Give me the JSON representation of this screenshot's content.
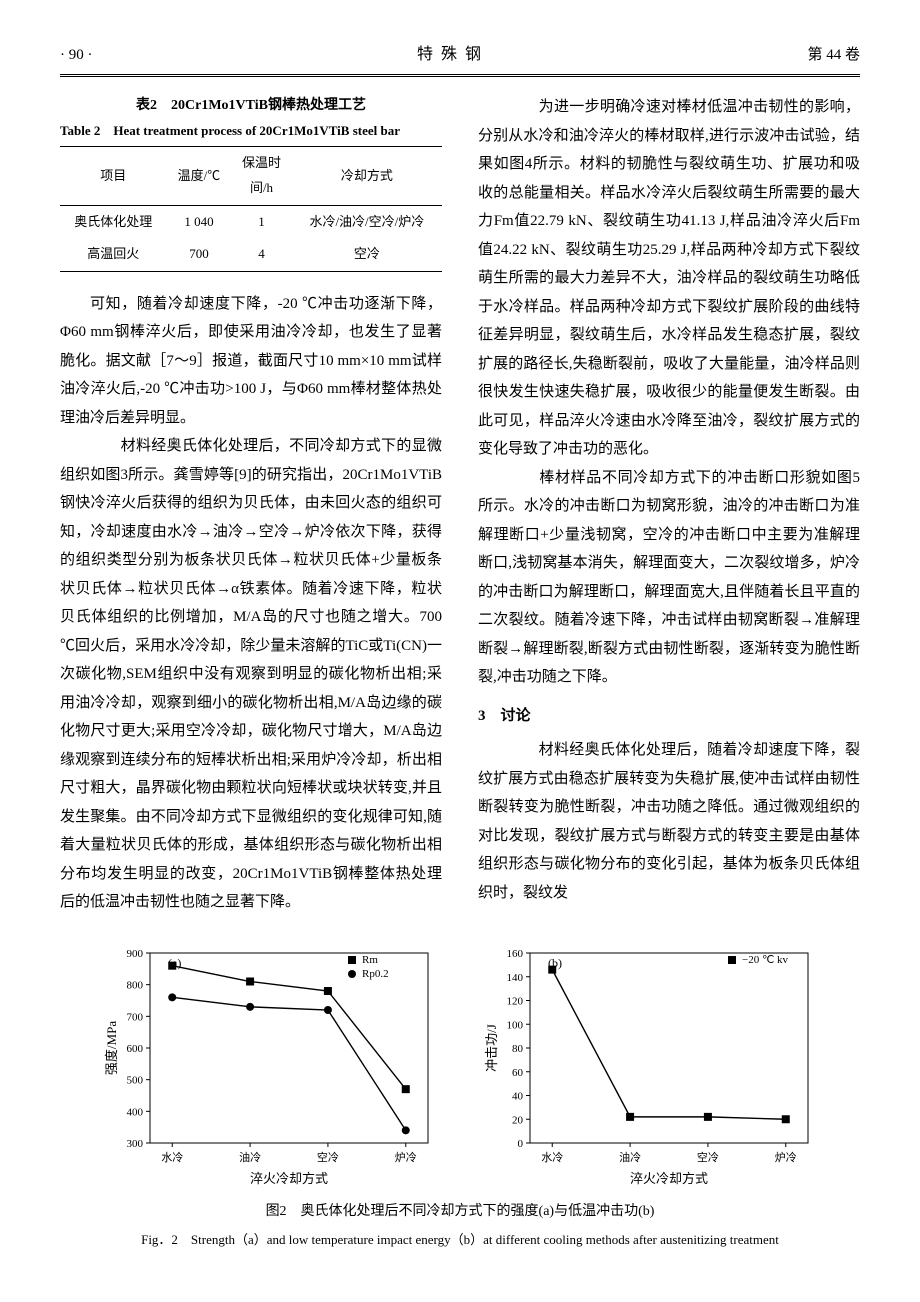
{
  "header": {
    "page": "· 90 ·",
    "journal": "特 殊 钢",
    "volume": "第 44 卷"
  },
  "table2": {
    "caption_cn": "表2　20Cr1Mo1VTiB钢棒热处理工艺",
    "caption_en_prefix": "Table 2　Heat treatment process of 20Cr1Mo1VTiB steel bar",
    "columns": [
      "项目",
      "温度/℃",
      "保温时\n间/h",
      "冷却方式"
    ],
    "rows": [
      [
        "奥氏体化处理",
        "1 040",
        "1",
        "水冷/油冷/空冷/炉冷"
      ],
      [
        "高温回火",
        "700",
        "4",
        "空冷"
      ]
    ]
  },
  "left_paras": [
    "可知，随着冷却速度下降，-20 ℃冲击功逐渐下降，Φ60 mm钢棒淬火后，即使采用油冷冷却，也发生了显著脆化。据文献［7～9］报道，截面尺寸10 mm×10 mm试样油冷淬火后,-20 ℃冲击功>100 J，与Φ60 mm棒材整体热处理油冷后差异明显。",
    "　　材料经奥氏体化处理后，不同冷却方式下的显微组织如图3所示。龚雪婷等[9]的研究指出，20Cr1Mo1VTiB钢快冷淬火后获得的组织为贝氏体，由未回火态的组织可知，冷却速度由水冷→油冷→空冷→炉冷依次下降，获得的组织类型分别为板条状贝氏体→粒状贝氏体+少量板条状贝氏体→粒状贝氏体→α铁素体。随着冷速下降，粒状贝氏体组织的比例增加，M/A岛的尺寸也随之增大。700 ℃回火后，采用水冷冷却，除少量未溶解的TiC或Ti(CN)一次碳化物,SEM组织中没有观察到明显的碳化物析出相;采用油冷冷却，观察到细小的碳化物析出相,M/A岛边缘的碳化物尺寸更大;采用空冷冷却，碳化物尺寸增大，M/A岛边缘观察到连续分布的短棒状析出相;采用炉冷冷却，析出相尺寸粗大，晶界碳化物由颗粒状向短棒状或块状转变,并且发生聚集。由不同冷却方式下显微组织的变化规律可知,随着大量粒状贝氏体的形成，基体组织形态与碳化物析出相分布均发生明显的改变，20Cr1Mo1VTiB钢棒整体热处理后的低温冲击韧性也随之显著下降。"
  ],
  "right_paras": [
    "　　为进一步明确冷速对棒材低温冲击韧性的影响，分别从水冷和油冷淬火的棒材取样,进行示波冲击试验，结果如图4所示。材料的韧脆性与裂纹萌生功、扩展功和吸收的总能量相关。样品水冷淬火后裂纹萌生所需要的最大力Fm值22.79 kN、裂纹萌生功41.13 J,样品油冷淬火后Fm值24.22 kN、裂纹萌生功25.29 J,样品两种冷却方式下裂纹萌生所需的最大力差异不大，油冷样品的裂纹萌生功略低于水冷样品。样品两种冷却方式下裂纹扩展阶段的曲线特征差异明显，裂纹萌生后，水冷样品发生稳态扩展，裂纹扩展的路径长,失稳断裂前，吸收了大量能量，油冷样品则很快发生快速失稳扩展，吸收很少的能量便发生断裂。由此可见，样品淬火冷速由水冷降至油冷，裂纹扩展方式的变化导致了冲击功的恶化。",
    "　　棒材样品不同冷却方式下的冲击断口形貌如图5所示。水冷的冲击断口为韧窝形貌，油冷的冲击断口为准解理断口+少量浅韧窝，空冷的冲击断口中主要为准解理断口,浅韧窝基本消失，解理面变大，二次裂纹增多，炉冷的冲击断口为解理断口，解理面宽大,且伴随着长且平直的二次裂纹。随着冷速下降，冲击试样由韧窝断裂→准解理断裂→解理断裂,断裂方式由韧性断裂，逐渐转变为脆性断裂,冲击功随之下降。"
  ],
  "section3": {
    "head": "3　讨论",
    "para": "　　材料经奥氏体化处理后，随着冷却速度下降，裂纹扩展方式由稳态扩展转变为失稳扩展,使冲击试样由韧性断裂转变为脆性断裂，冲击功随之降低。通过微观组织的对比发现，裂纹扩展方式与断裂方式的转变主要是由基体组织形态与碳化物分布的变化引起，基体为板条贝氏体组织时，裂纹发"
  },
  "fig2": {
    "caption_cn": "图2　奥氏体化处理后不同冷却方式下的强度(a)与低温冲击功(b)",
    "caption_en": "Fig．2　Strength（a）and low temperature impact energy（b）at different cooling methods after austenitizing treatment",
    "chart_a": {
      "type": "line",
      "tag": "(a)",
      "xlabel": "淬火冷却方式",
      "ylabel": "强度/MPa",
      "x_categories": [
        "水冷",
        "油冷",
        "空冷",
        "炉冷"
      ],
      "ylim": [
        300,
        900
      ],
      "ytick_step": 100,
      "series": [
        {
          "name": "Rm",
          "marker": "square-filled",
          "values": [
            860,
            810,
            780,
            470
          ],
          "color": "#000000"
        },
        {
          "name": "Rp0.2",
          "marker": "circle-filled",
          "values": [
            760,
            730,
            720,
            340
          ],
          "color": "#000000"
        }
      ],
      "legend_pos": "top-right",
      "background": "#ffffff",
      "border_color": "#000000",
      "line_width": 1.4
    },
    "chart_b": {
      "type": "line",
      "tag": "(b)",
      "xlabel": "淬火冷却方式",
      "ylabel": "冲击功/J",
      "x_categories": [
        "水冷",
        "油冷",
        "空冷",
        "炉冷"
      ],
      "ylim": [
        0,
        160
      ],
      "ytick_step": 20,
      "series": [
        {
          "name": "−20 ℃ kv",
          "marker": "square-filled",
          "values": [
            146,
            22,
            22,
            20
          ],
          "color": "#000000"
        }
      ],
      "legend_pos": "top-right",
      "background": "#ffffff",
      "border_color": "#000000",
      "line_width": 1.4
    }
  }
}
